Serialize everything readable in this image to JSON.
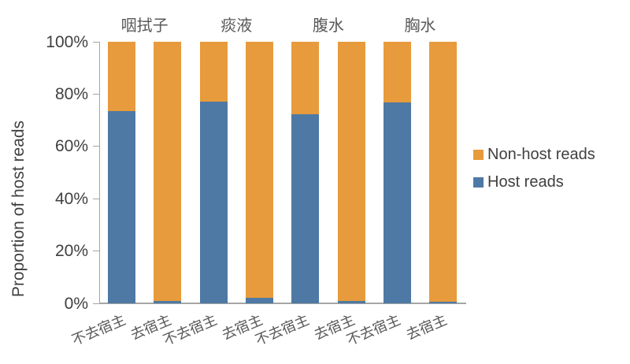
{
  "chart_data": {
    "type": "bar",
    "stacked": true,
    "title": "",
    "ylabel": "Proportion of host reads",
    "xlabel": "",
    "ylim": [
      0,
      100
    ],
    "grid": false,
    "legend_position": "right",
    "y_tick_labels": [
      "0%",
      "20%",
      "40%",
      "60%",
      "80%",
      "100%"
    ],
    "group_labels": [
      "咽拭子",
      "痰液",
      "腹水",
      "胸水"
    ],
    "categories": [
      "不去宿主",
      "去宿主",
      "不去宿主",
      "去宿主",
      "不去宿主",
      "去宿主",
      "不去宿主",
      "去宿主"
    ],
    "series": [
      {
        "name": "Host reads",
        "color": "#4e79a4",
        "values": [
          73.5,
          0.8,
          77.1,
          2.0,
          72.2,
          0.8,
          76.8,
          0.6
        ]
      },
      {
        "name": "Non-host reads",
        "color": "#e79b3c",
        "values": [
          26.5,
          99.2,
          22.9,
          98.0,
          27.8,
          99.2,
          23.2,
          99.4
        ]
      }
    ],
    "legend": [
      {
        "label": "Non-host reads",
        "color": "#e79b3c"
      },
      {
        "label": "Host reads",
        "color": "#4e79a4"
      }
    ]
  }
}
